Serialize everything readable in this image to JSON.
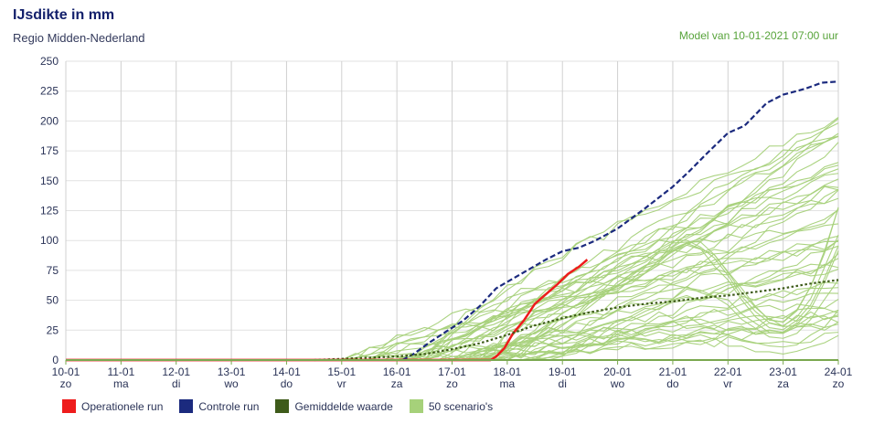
{
  "header": {
    "title": "IJsdikte in mm",
    "subtitle": "Regio Midden-Nederland",
    "model_run": "Model van 10-01-2021 07:00 uur"
  },
  "legend": [
    {
      "label": "Operationele run",
      "color": "#ee1c1c"
    },
    {
      "label": "Controle run",
      "color": "#1b2a7e"
    },
    {
      "label": "Gemiddelde waarde",
      "color": "#3e5b1a"
    },
    {
      "label": "50 scenario's",
      "color": "#a6d17a"
    }
  ],
  "chart_data": {
    "type": "line",
    "title": "IJsdikte in mm",
    "ylabel": "",
    "ylim": [
      0,
      250
    ],
    "yticks": [
      0,
      25,
      50,
      75,
      100,
      125,
      150,
      175,
      200,
      225,
      250
    ],
    "xlim": [
      0,
      14
    ],
    "x_unit": "days from 10-01",
    "xticks": [
      {
        "date": "10-01",
        "day": "zo"
      },
      {
        "date": "11-01",
        "day": "ma"
      },
      {
        "date": "12-01",
        "day": "di"
      },
      {
        "date": "13-01",
        "day": "wo"
      },
      {
        "date": "14-01",
        "day": "do"
      },
      {
        "date": "15-01",
        "day": "vr"
      },
      {
        "date": "16-01",
        "day": "za"
      },
      {
        "date": "17-01",
        "day": "zo"
      },
      {
        "date": "18-01",
        "day": "ma"
      },
      {
        "date": "19-01",
        "day": "di"
      },
      {
        "date": "20-01",
        "day": "wo"
      },
      {
        "date": "21-01",
        "day": "do"
      },
      {
        "date": "22-01",
        "day": "vr"
      },
      {
        "date": "23-01",
        "day": "za"
      },
      {
        "date": "24-01",
        "day": "zo"
      }
    ],
    "grid": true,
    "legend_position": "bottom-left",
    "series": [
      {
        "name": "Operationele run",
        "color": "#ee1c1c",
        "style": "solid",
        "points": [
          [
            0,
            0
          ],
          [
            7.7,
            0
          ],
          [
            7.8,
            3
          ],
          [
            7.95,
            10
          ],
          [
            8.1,
            22
          ],
          [
            8.3,
            33
          ],
          [
            8.5,
            47
          ],
          [
            8.7,
            55
          ],
          [
            8.9,
            63
          ],
          [
            9.1,
            72
          ],
          [
            9.3,
            78
          ],
          [
            9.45,
            84
          ]
        ]
      },
      {
        "name": "Controle run",
        "color": "#1b2a7e",
        "style": "dashed",
        "points": [
          [
            6.1,
            0
          ],
          [
            6.3,
            5
          ],
          [
            6.6,
            15
          ],
          [
            6.9,
            24
          ],
          [
            7.2,
            33
          ],
          [
            7.5,
            45
          ],
          [
            7.8,
            60
          ],
          [
            8.1,
            68
          ],
          [
            8.4,
            76
          ],
          [
            8.7,
            84
          ],
          [
            9.0,
            91
          ],
          [
            9.3,
            94
          ],
          [
            9.6,
            100
          ],
          [
            10.0,
            110
          ],
          [
            10.5,
            127
          ],
          [
            11.0,
            145
          ],
          [
            11.3,
            158
          ],
          [
            11.6,
            172
          ],
          [
            12.0,
            190
          ],
          [
            12.3,
            196
          ],
          [
            12.7,
            215
          ],
          [
            13.0,
            222
          ],
          [
            13.4,
            227
          ],
          [
            13.7,
            232
          ],
          [
            14.0,
            233
          ]
        ]
      },
      {
        "name": "Gemiddelde waarde",
        "color": "#3e5b1a",
        "style": "dotted",
        "points": [
          [
            4.5,
            0
          ],
          [
            5.0,
            1
          ],
          [
            5.5,
            2
          ],
          [
            6.0,
            3
          ],
          [
            6.5,
            5
          ],
          [
            7.0,
            9
          ],
          [
            7.5,
            14
          ],
          [
            8.0,
            21
          ],
          [
            8.5,
            29
          ],
          [
            9.0,
            35
          ],
          [
            9.5,
            40
          ],
          [
            10.0,
            44
          ],
          [
            10.5,
            47
          ],
          [
            11.0,
            49
          ],
          [
            11.5,
            52
          ],
          [
            12.0,
            54
          ],
          [
            12.5,
            57
          ],
          [
            13.0,
            60
          ],
          [
            13.5,
            64
          ],
          [
            14.0,
            67
          ]
        ]
      }
    ],
    "scenarios": {
      "name": "50 scenario's",
      "color": "#a6d17a",
      "count": 50,
      "range": "0 to 206",
      "note": "ensemble band rising from 15-01 onward"
    }
  }
}
